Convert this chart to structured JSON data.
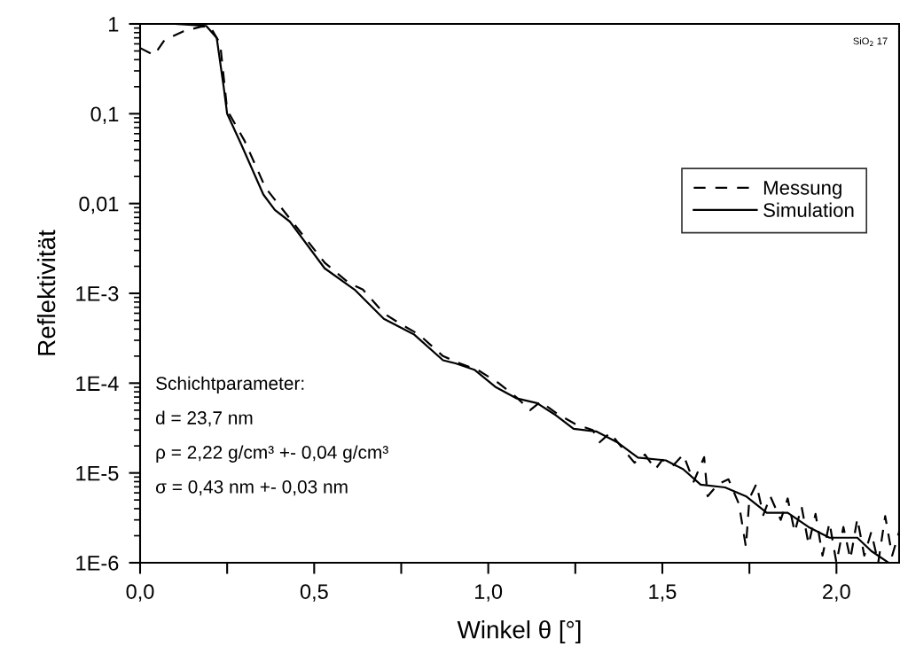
{
  "chart_data": {
    "type": "line",
    "xlabel": "Winkel θ [°]",
    "ylabel": "Reflektivität",
    "log": "y",
    "legend": "top right",
    "grid": false,
    "xlim": [
      0,
      2.18
    ],
    "ylim": [
      1e-06,
      1
    ],
    "xticks": [
      {
        "value": 0,
        "label": "0,0"
      },
      {
        "value": 0.25,
        "label": null
      },
      {
        "value": 0.5,
        "label": "0,5"
      },
      {
        "value": 0.75,
        "label": null
      },
      {
        "value": 1.0,
        "label": "1,0"
      },
      {
        "value": 1.25,
        "label": null
      },
      {
        "value": 1.5,
        "label": "1,5"
      },
      {
        "value": 1.75,
        "label": null
      },
      {
        "value": 2.0,
        "label": "2,0"
      }
    ],
    "yticks": [
      {
        "value": 1e-06,
        "label": "1E-6"
      },
      {
        "value": 1e-05,
        "label": "1E-5"
      },
      {
        "value": 0.0001,
        "label": "1E-4"
      },
      {
        "value": 0.001,
        "label": "1E-3"
      },
      {
        "value": 0.01,
        "label": "0,01"
      },
      {
        "value": 0.1,
        "label": "0,1"
      },
      1
    ],
    "annotations": [
      "SiO$_{2}$ 17",
      "Schichtparameter:",
      "d = 23,7 nm",
      "ρ = 2,22 g/cm³ +- 0,04 g/cm³",
      "σ = 0,43 nm +- 0,03 nm"
    ],
    "series": [
      {
        "name": "Messung",
        "color": "#000000",
        "line_style": "dashed",
        "x": [
          0,
          0.04,
          0.07,
          0.125,
          0.175,
          0.2,
          0.23,
          0.25,
          0.3,
          0.36,
          0.43,
          0.53,
          0.6,
          0.64,
          0.7,
          0.75,
          0.8,
          0.87,
          0.92,
          0.97,
          1.03,
          1.08,
          1.12,
          1.15,
          1.2,
          1.25,
          1.3,
          1.32,
          1.35,
          1.38,
          1.42,
          1.45,
          1.48,
          1.5,
          1.53,
          1.56,
          1.59,
          1.62,
          1.63,
          1.66,
          1.69,
          1.72,
          1.74,
          1.75,
          1.77,
          1.79,
          1.81,
          1.84,
          1.86,
          1.88,
          1.9,
          1.92,
          1.94,
          1.96,
          1.98,
          2.0,
          2.02,
          2.04,
          2.06,
          2.08,
          2.1,
          2.12,
          2.14,
          2.16,
          2.18
        ],
        "values": [
          0.54,
          0.45,
          0.66,
          0.83,
          0.93,
          0.95,
          0.6,
          0.11,
          0.05,
          0.015,
          0.0068,
          0.0022,
          0.0013,
          0.0011,
          0.0006,
          0.00045,
          0.00035,
          0.0002,
          0.000165,
          0.00014,
          0.0001,
          7e-05,
          5e-05,
          6.2e-05,
          4.5e-05,
          3.5e-05,
          3e-05,
          2.2e-05,
          2.8e-05,
          2e-05,
          1.3e-05,
          1.6e-05,
          1.1e-05,
          1.4e-05,
          1.2e-05,
          1.6e-05,
          8e-06,
          1.5e-05,
          5.5e-06,
          7.5e-06,
          8.5e-06,
          4.5e-06,
          1.5e-06,
          5.2e-06,
          7.5e-06,
          3.4e-06,
          5.5e-06,
          3e-06,
          5.2e-06,
          2.2e-06,
          4.2e-06,
          1.6e-06,
          3.5e-06,
          1.2e-06,
          2.8e-06,
          1e-06,
          2.5e-06,
          1.1e-06,
          3.1e-06,
          1.2e-06,
          2.2e-06,
          1e-06,
          3.3e-06,
          1.2e-06,
          2.2e-06
        ]
      },
      {
        "name": "Simulation",
        "color": "#000000",
        "line_style": "solid",
        "x": [
          0,
          0.1,
          0.19,
          0.22,
          0.24,
          0.25,
          0.29,
          0.354,
          0.387,
          0.43,
          0.53,
          0.616,
          0.7,
          0.786,
          0.87,
          0.906,
          0.96,
          1.02,
          1.08,
          1.14,
          1.19,
          1.245,
          1.31,
          1.37,
          1.43,
          1.51,
          1.56,
          1.61,
          1.68,
          1.74,
          1.8,
          1.86,
          1.92,
          1.98,
          2.06,
          2.1,
          2.15
        ],
        "values": [
          1,
          1,
          0.95,
          0.7,
          0.2,
          0.1,
          0.046,
          0.0126,
          0.0085,
          0.0063,
          0.0019,
          0.0011,
          0.00052,
          0.00035,
          0.00018,
          0.000166,
          0.000141,
          9.1e-05,
          6.8e-05,
          6e-05,
          4.5e-05,
          3.1e-05,
          2.9e-05,
          2.2e-05,
          1.48e-05,
          1.38e-05,
          1.1e-05,
          7.4e-06,
          6.9e-06,
          5.5e-06,
          3.6e-06,
          3.6e-06,
          2.5e-06,
          1.9e-06,
          1.9e-06,
          1.35e-06,
          1e-06
        ]
      }
    ]
  }
}
